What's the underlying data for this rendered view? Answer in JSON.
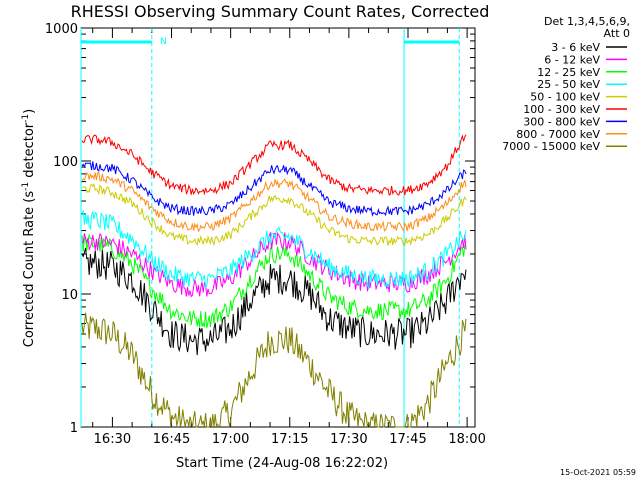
{
  "chart_data": {
    "type": "line",
    "title": "RHESSI Observing Summary Count Rates, Corrected",
    "xlabel": "Start Time (24-Aug-08 16:22:02)",
    "ylabel": "Corrected Count Rate (s⁻¹ detector⁻¹)",
    "ylabel_main": "Corrected Count Rate (s",
    "ylabel_sup1": "-1",
    "ylabel_mid": " detector",
    "ylabel_sup2": "-1",
    "ylabel_end": ")",
    "y_scale": "log",
    "ylim": [
      1,
      1000
    ],
    "xlim": [
      "16:22:02",
      "18:02:00"
    ],
    "x_ticks": [
      "16:30",
      "16:45",
      "17:00",
      "17:15",
      "17:30",
      "17:45",
      "18:00"
    ],
    "y_ticks": [
      "1",
      "10",
      "100",
      "1000"
    ],
    "legend_header": [
      "Det 1,3,4,5,6,9,",
      "Att 0"
    ],
    "legend_position": "right",
    "annotation_n": "N",
    "footer_date": "15-Oct-2021 05:59",
    "x": [
      "16:26",
      "16:30",
      "16:35",
      "16:40",
      "16:45",
      "16:50",
      "16:55",
      "17:00",
      "17:05",
      "17:10",
      "17:15",
      "17:20",
      "17:25",
      "17:30",
      "17:35",
      "17:40",
      "17:45",
      "17:50",
      "17:55",
      "17:59"
    ],
    "series": [
      {
        "name": "3 - 6 keV",
        "color": "#000000",
        "values": [
          17,
          16,
          13,
          8,
          5,
          4.5,
          4.5,
          5.5,
          9,
          13,
          13,
          10,
          6.5,
          5.5,
          5,
          5,
          5,
          6,
          9,
          15
        ]
      },
      {
        "name": "6 - 12 keV",
        "color": "#ff00ff",
        "values": [
          25,
          24,
          20,
          15,
          12,
          11,
          11,
          13,
          18,
          25,
          25,
          19,
          15,
          13,
          12,
          12,
          12,
          14,
          18,
          25
        ]
      },
      {
        "name": "12 - 25 keV",
        "color": "#00ff00",
        "values": [
          24,
          22,
          17,
          11,
          7.5,
          6.5,
          6.5,
          8,
          13,
          20,
          20,
          14,
          9.5,
          8,
          7.5,
          7.5,
          7.5,
          9,
          13,
          22
        ]
      },
      {
        "name": "25 - 50 keV",
        "color": "#00ffff",
        "values": [
          36,
          33,
          26,
          18,
          14,
          13,
          13,
          15,
          20,
          27,
          27,
          21,
          16,
          14,
          13,
          13,
          13,
          15,
          20,
          27
        ]
      },
      {
        "name": "50 - 100 keV",
        "color": "#cccc00",
        "values": [
          62,
          58,
          48,
          35,
          27,
          25,
          25,
          28,
          38,
          52,
          52,
          40,
          30,
          26,
          25,
          25,
          25,
          28,
          37,
          50
        ]
      },
      {
        "name": "100 - 300 keV",
        "color": "#ff0000",
        "values": [
          145,
          138,
          112,
          82,
          65,
          60,
          60,
          68,
          95,
          132,
          132,
          100,
          72,
          62,
          60,
          60,
          60,
          68,
          92,
          150
        ]
      },
      {
        "name": "300 - 800 keV",
        "color": "#0000ff",
        "values": [
          92,
          88,
          72,
          53,
          44,
          42,
          42,
          47,
          63,
          86,
          86,
          65,
          49,
          44,
          42,
          42,
          42,
          47,
          60,
          80
        ]
      },
      {
        "name": "800 - 7000 keV",
        "color": "#ff8c1a",
        "values": [
          77,
          73,
          60,
          44,
          35,
          32,
          32,
          37,
          50,
          68,
          68,
          52,
          38,
          34,
          32,
          32,
          32,
          37,
          48,
          68
        ]
      },
      {
        "name": "7000 - 15000 keV",
        "color": "#808000",
        "values": [
          5.5,
          5,
          3.5,
          1.8,
          1.2,
          1,
          1,
          1.3,
          2.5,
          4.5,
          4.5,
          3,
          1.8,
          1.2,
          1,
          1,
          1,
          1.5,
          3,
          5
        ]
      }
    ],
    "cyan_markers": {
      "color": "#00ffff",
      "top_bars": [
        [
          "16:22:02",
          "16:40"
        ],
        [
          "17:44",
          "17:58"
        ]
      ],
      "dashed_lines": [
        "16:40",
        "17:58"
      ],
      "solid_lines": [
        "16:22:02",
        "17:44"
      ]
    }
  }
}
